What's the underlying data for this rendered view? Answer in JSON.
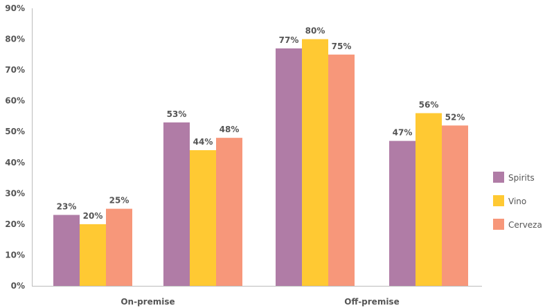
{
  "chart_data": {
    "type": "bar",
    "group_labels": [
      "On-premise",
      "Off-premise"
    ],
    "categories": [
      "",
      "",
      "",
      ""
    ],
    "series": [
      {
        "name": "Spirits",
        "values": [
          23,
          53,
          77,
          47
        ],
        "labels": [
          "23%",
          "53%",
          "77%",
          "47%"
        ],
        "color": "#B07CA6"
      },
      {
        "name": "Vino",
        "values": [
          20,
          44,
          80,
          56
        ],
        "labels": [
          "20%",
          "44%",
          "80%",
          "56%"
        ],
        "color": "#FFC933"
      },
      {
        "name": "Cerveza",
        "values": [
          25,
          48,
          75,
          52
        ],
        "labels": [
          "25%",
          "48%",
          "75%",
          "52%"
        ],
        "color": "#F7977A"
      }
    ],
    "ylim": [
      0,
      90
    ],
    "yticks": [
      0,
      10,
      20,
      30,
      40,
      50,
      60,
      70,
      80,
      90
    ],
    "ytick_labels": [
      "0%",
      "10%",
      "20%",
      "30%",
      "40%",
      "50%",
      "60%",
      "70%",
      "80%",
      "90%"
    ],
    "legend_position": "right",
    "grid": false
  }
}
